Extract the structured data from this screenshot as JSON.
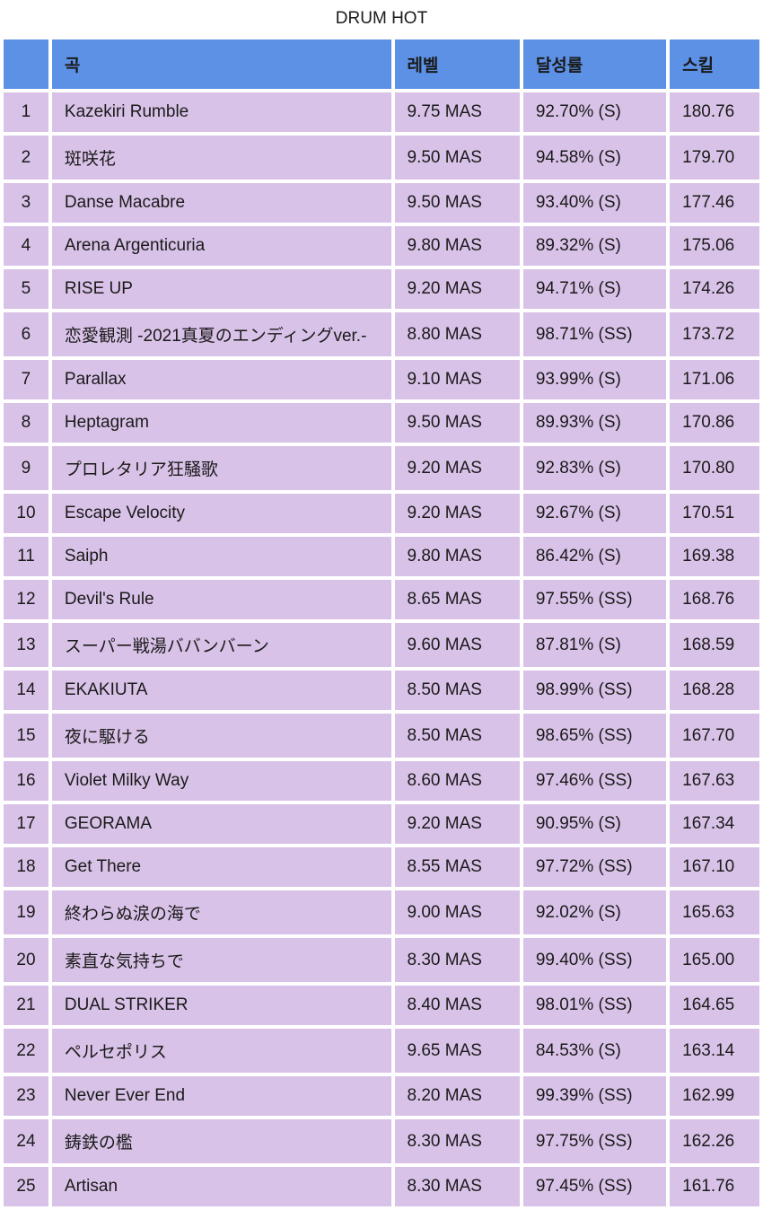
{
  "title": "DRUM HOT",
  "table": {
    "headers": {
      "rank": "",
      "song": "곡",
      "level": "레벨",
      "rate": "달성률",
      "skill": "스킬"
    },
    "header_bg_color": "#5c91e6",
    "row_bg_color": "#d9c2e8",
    "text_color": "#1a1a1a",
    "font_size": 19,
    "rows": [
      {
        "rank": "1",
        "song": "Kazekiri Rumble",
        "level": "9.75 MAS",
        "rate": "92.70% (S)",
        "skill": "180.76"
      },
      {
        "rank": "2",
        "song": "斑咲花",
        "level": "9.50 MAS",
        "rate": "94.58% (S)",
        "skill": "179.70"
      },
      {
        "rank": "3",
        "song": "Danse Macabre",
        "level": "9.50 MAS",
        "rate": "93.40% (S)",
        "skill": "177.46"
      },
      {
        "rank": "4",
        "song": "Arena Argenticuria",
        "level": "9.80 MAS",
        "rate": "89.32% (S)",
        "skill": "175.06"
      },
      {
        "rank": "5",
        "song": "RISE UP",
        "level": "9.20 MAS",
        "rate": "94.71% (S)",
        "skill": "174.26"
      },
      {
        "rank": "6",
        "song": "恋愛観測 -2021真夏のエンディングver.-",
        "level": "8.80 MAS",
        "rate": "98.71% (SS)",
        "skill": "173.72"
      },
      {
        "rank": "7",
        "song": "Parallax",
        "level": "9.10 MAS",
        "rate": "93.99% (S)",
        "skill": "171.06"
      },
      {
        "rank": "8",
        "song": "Heptagram",
        "level": "9.50 MAS",
        "rate": "89.93% (S)",
        "skill": "170.86"
      },
      {
        "rank": "9",
        "song": "プロレタリア狂騒歌",
        "level": "9.20 MAS",
        "rate": "92.83% (S)",
        "skill": "170.80"
      },
      {
        "rank": "10",
        "song": "Escape Velocity",
        "level": "9.20 MAS",
        "rate": "92.67% (S)",
        "skill": "170.51"
      },
      {
        "rank": "11",
        "song": "Saiph",
        "level": "9.80 MAS",
        "rate": "86.42% (S)",
        "skill": "169.38"
      },
      {
        "rank": "12",
        "song": "Devil's Rule",
        "level": "8.65 MAS",
        "rate": "97.55% (SS)",
        "skill": "168.76"
      },
      {
        "rank": "13",
        "song": "スーパー戦湯ババンバーン",
        "level": "9.60 MAS",
        "rate": "87.81% (S)",
        "skill": "168.59"
      },
      {
        "rank": "14",
        "song": "EKAKIUTA",
        "level": "8.50 MAS",
        "rate": "98.99% (SS)",
        "skill": "168.28"
      },
      {
        "rank": "15",
        "song": "夜に駆ける",
        "level": "8.50 MAS",
        "rate": "98.65% (SS)",
        "skill": "167.70"
      },
      {
        "rank": "16",
        "song": "Violet Milky Way",
        "level": "8.60 MAS",
        "rate": "97.46% (SS)",
        "skill": "167.63"
      },
      {
        "rank": "17",
        "song": "GEORAMA",
        "level": "9.20 MAS",
        "rate": "90.95% (S)",
        "skill": "167.34"
      },
      {
        "rank": "18",
        "song": "Get There",
        "level": "8.55 MAS",
        "rate": "97.72% (SS)",
        "skill": "167.10"
      },
      {
        "rank": "19",
        "song": "終わらぬ涙の海で",
        "level": "9.00 MAS",
        "rate": "92.02% (S)",
        "skill": "165.63"
      },
      {
        "rank": "20",
        "song": "素直な気持ちで",
        "level": "8.30 MAS",
        "rate": "99.40% (SS)",
        "skill": "165.00"
      },
      {
        "rank": "21",
        "song": "DUAL STRIKER",
        "level": "8.40 MAS",
        "rate": "98.01% (SS)",
        "skill": "164.65"
      },
      {
        "rank": "22",
        "song": "ペルセポリス",
        "level": "9.65 MAS",
        "rate": "84.53% (S)",
        "skill": "163.14"
      },
      {
        "rank": "23",
        "song": "Never Ever End",
        "level": "8.20 MAS",
        "rate": "99.39% (SS)",
        "skill": "162.99"
      },
      {
        "rank": "24",
        "song": "鋳鉄の檻",
        "level": "8.30 MAS",
        "rate": "97.75% (SS)",
        "skill": "162.26"
      },
      {
        "rank": "25",
        "song": "Artisan",
        "level": "8.30 MAS",
        "rate": "97.45% (SS)",
        "skill": "161.76"
      }
    ]
  }
}
